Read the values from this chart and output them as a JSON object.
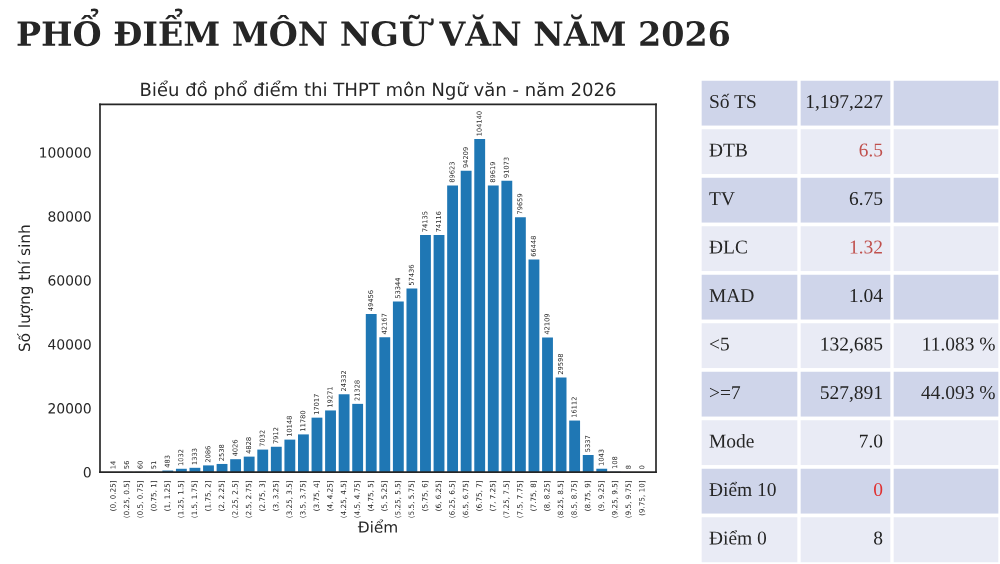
{
  "chart_data": [
    {
      "type": "bar",
      "title": "PHỔ ĐIỂM MÔN NGỮ VĂN NĂM 2026",
      "subtitle": "Biểu đồ phổ điểm thi THPT môn Ngữ văn - năm 2026",
      "xlabel": "Điểm",
      "ylabel": "Số lượng thí sinh",
      "categories": [
        "(0, 0.25]",
        "(0.25, 0.5]",
        "(0.5, 0.75]",
        "(0.75, 1]",
        "(1, 1.25]",
        "(1.25, 1.5]",
        "(1.5, 1.75]",
        "(1.75, 2]",
        "(2, 2.25]",
        "(2.25, 2.5]",
        "(2.5, 2.75]",
        "(2.75, 3]",
        "(3, 3.25]",
        "(3.25, 3.5]",
        "(3.5, 3.75]",
        "(3.75, 4]",
        "(4, 4.25]",
        "(4.25, 4.5]",
        "(4.5, 4.75]",
        "(4.75, 5]",
        "(5, 5.25]",
        "(5.25, 5.5]",
        "(5.5, 5.75]",
        "(5.75, 6]",
        "(6, 6.25]",
        "(6.25, 6.5]",
        "(6.5, 6.75]",
        "(6.75, 7]",
        "(7, 7.25]",
        "(7.25, 7.5]",
        "(7.5, 7.75]",
        "(7.75, 8]",
        "(8, 8.25]",
        "(8.25, 8.5]",
        "(8.5, 8.75]",
        "(8.75, 9]",
        "(9, 9.25]",
        "(9.25, 9.5]",
        "(9.5, 9.75]",
        "(9.75, 10]"
      ],
      "values": [
        14,
        56,
        60,
        51,
        483,
        1032,
        1333,
        2086,
        2538,
        4026,
        4828,
        7032,
        7912,
        10148,
        11780,
        17017,
        19271,
        24332,
        21328,
        49456,
        42167,
        53344,
        57436,
        74135,
        74116,
        89623,
        94209,
        104140,
        89619,
        91073,
        79659,
        66448,
        42109,
        29598,
        16112,
        5337,
        1043,
        108,
        8,
        0
      ],
      "color": "#1f77b4",
      "ylim": [
        0,
        115000
      ],
      "yticks": [
        0,
        20000,
        40000,
        60000,
        80000,
        100000
      ],
      "data_labels": true,
      "grid": false
    },
    {
      "type": "other",
      "y_categories": [
        "Số TS",
        "ĐTB",
        "TV",
        "ĐLC",
        "MAD",
        "<5",
        ">=7",
        "Mode",
        "Điểm 10",
        "Điểm 0"
      ],
      "cell_labels": [
        [
          "1,197,227",
          null
        ],
        [
          "6.5",
          null
        ],
        [
          "6.75",
          null
        ],
        [
          "1.32",
          null
        ],
        [
          "1.04",
          null
        ],
        [
          "132,685",
          "11.083 %"
        ],
        [
          "527,891",
          "44.093 %"
        ],
        [
          "7.0",
          null
        ],
        [
          "0",
          null
        ],
        [
          "8",
          null
        ]
      ],
      "colors": [
        "#222222",
        "#c0504d",
        "#222222",
        "#c0504d",
        "#222222",
        "#222222",
        "#222222",
        "#222222",
        "#e03030",
        "#222222"
      ]
    }
  ]
}
